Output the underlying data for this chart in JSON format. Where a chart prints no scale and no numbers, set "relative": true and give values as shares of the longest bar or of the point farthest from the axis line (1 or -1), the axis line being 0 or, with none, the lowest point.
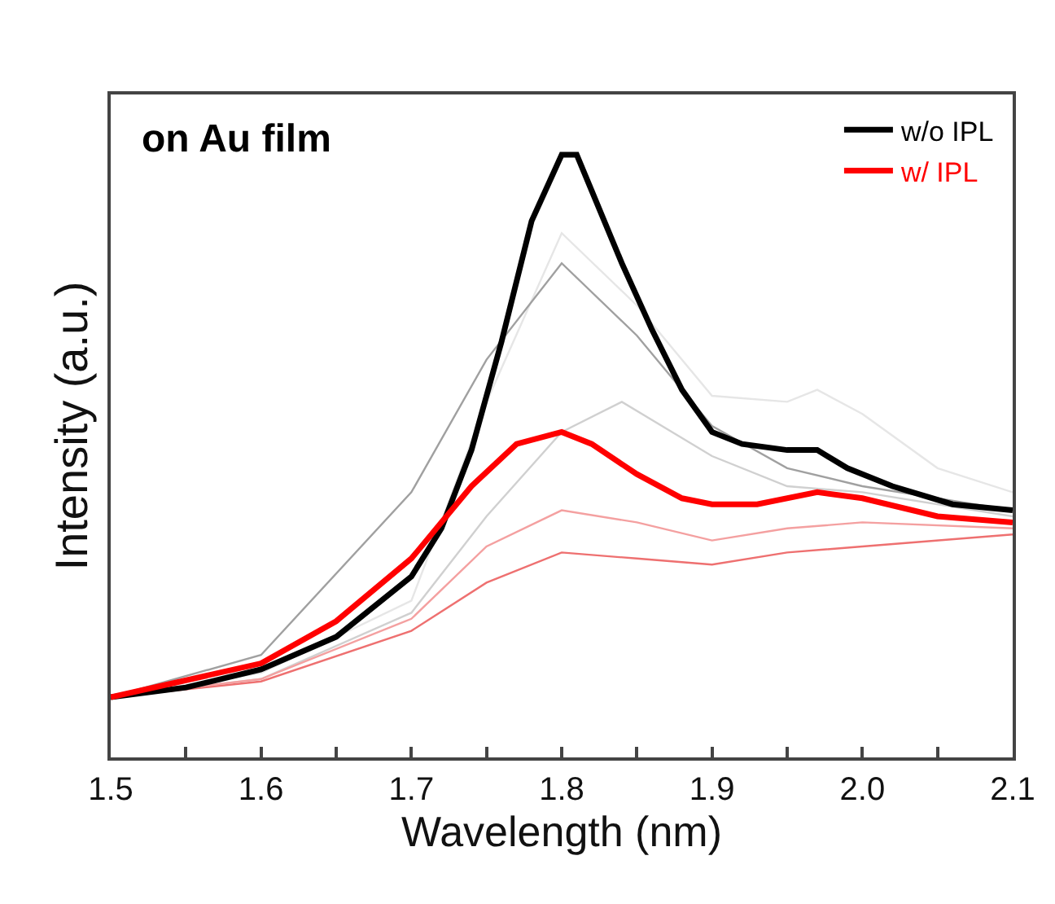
{
  "chart_data": {
    "type": "line",
    "title": "on Au film",
    "xlabel": "Wavelength (nm)",
    "ylabel": "Intensity (a.u.)",
    "relative": true,
    "xlim": [
      1.5,
      2.1
    ],
    "xticks": [
      1.5,
      {
        "value": 1.55,
        "label": null
      },
      1.6,
      {
        "value": 1.65,
        "label": null
      },
      1.7,
      {
        "value": 1.75,
        "label": null
      },
      1.8,
      {
        "value": 1.85,
        "label": null
      },
      1.9,
      {
        "value": 1.95,
        "label": null
      },
      {
        "value": 2.0,
        "label": "2.0"
      },
      {
        "value": 2.05,
        "label": null
      },
      2.1
    ],
    "legend": "top right",
    "marker": "none",
    "line_style": "solid",
    "series": [
      {
        "color": "#e6e6e6",
        "x": [
          1.5,
          1.6,
          1.7,
          1.75,
          1.8,
          1.85,
          1.9,
          1.95,
          1.97,
          2.0,
          2.05,
          2.1
        ],
        "values": [
          0.1,
          0.14,
          0.26,
          0.59,
          0.87,
          0.75,
          0.6,
          0.59,
          0.61,
          0.57,
          0.48,
          0.44
        ]
      },
      {
        "color": "#d0d0d0",
        "x": [
          1.5,
          1.6,
          1.7,
          1.75,
          1.8,
          1.84,
          1.9,
          1.95,
          2.0,
          2.1
        ],
        "values": [
          0.1,
          0.13,
          0.24,
          0.4,
          0.54,
          0.59,
          0.5,
          0.45,
          0.44,
          0.4
        ]
      },
      {
        "color": "#a0a0a0",
        "x": [
          1.5,
          1.6,
          1.7,
          1.75,
          1.8,
          1.85,
          1.9,
          1.95,
          2.0,
          2.1
        ],
        "values": [
          0.1,
          0.17,
          0.44,
          0.66,
          0.82,
          0.7,
          0.55,
          0.48,
          0.45,
          0.41
        ]
      },
      {
        "color": "#ee7070",
        "x": [
          1.5,
          1.6,
          1.7,
          1.75,
          1.8,
          1.85,
          1.9,
          1.95,
          2.0,
          2.1
        ],
        "values": [
          0.1,
          0.126,
          0.21,
          0.29,
          0.34,
          0.33,
          0.32,
          0.34,
          0.35,
          0.37
        ]
      },
      {
        "color": "#f4a0a0",
        "x": [
          1.5,
          1.6,
          1.7,
          1.75,
          1.8,
          1.85,
          1.9,
          1.95,
          2.0,
          2.1
        ],
        "values": [
          0.1,
          0.13,
          0.23,
          0.35,
          0.41,
          0.39,
          0.36,
          0.38,
          0.39,
          0.38
        ]
      },
      {
        "name": "w/o IPL",
        "color": "#000000",
        "x": [
          1.5,
          1.55,
          1.6,
          1.65,
          1.7,
          1.72,
          1.74,
          1.76,
          1.78,
          1.8,
          1.81,
          1.82,
          1.84,
          1.86,
          1.88,
          1.9,
          1.92,
          1.95,
          1.97,
          1.99,
          2.02,
          2.06,
          2.1
        ],
        "values": [
          0.1,
          0.116,
          0.146,
          0.2,
          0.3,
          0.38,
          0.51,
          0.69,
          0.89,
          1,
          1,
          0.94,
          0.82,
          0.71,
          0.61,
          0.54,
          0.52,
          0.51,
          0.51,
          0.48,
          0.45,
          0.42,
          0.41
        ]
      },
      {
        "name": "w/ IPL",
        "color": "#ff0000",
        "x": [
          1.5,
          1.6,
          1.65,
          1.7,
          1.74,
          1.77,
          1.8,
          1.82,
          1.85,
          1.88,
          1.9,
          1.93,
          1.97,
          2.0,
          2.05,
          2.1
        ],
        "values": [
          0.1,
          0.156,
          0.226,
          0.33,
          0.45,
          0.52,
          0.54,
          0.52,
          0.47,
          0.43,
          0.42,
          0.42,
          0.44,
          0.43,
          0.4,
          0.39
        ]
      }
    ]
  }
}
